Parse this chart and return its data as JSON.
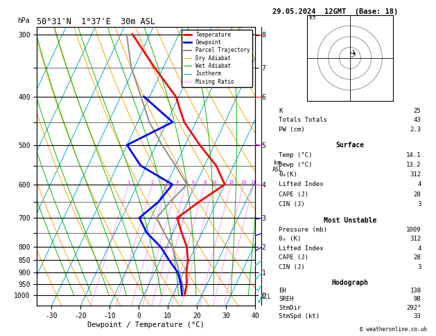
{
  "title_left": "50°31'N  1°37'E  30m ASL",
  "title_right": "29.05.2024  12GMT  (Base: 18)",
  "xlabel": "Dewpoint / Temperature (°C)",
  "ylabel_left": "hPa",
  "temp_color": "#FF0000",
  "dewpoint_color": "#0000FF",
  "parcel_color": "#909090",
  "dry_adiabat_color": "#FFA500",
  "wet_adiabat_color": "#00BB00",
  "isotherm_color": "#00AACC",
  "mixing_ratio_color": "#FF00FF",
  "bg_color": "#FFFFFF",
  "xlim": [
    -35,
    40
  ],
  "legend_entries": [
    {
      "label": "Temperature",
      "color": "#FF0000",
      "lw": 2.0,
      "ls": "solid"
    },
    {
      "label": "Dewpoint",
      "color": "#0000FF",
      "lw": 2.0,
      "ls": "solid"
    },
    {
      "label": "Parcel Trajectory",
      "color": "#909090",
      "lw": 1.5,
      "ls": "solid"
    },
    {
      "label": "Dry Adiabat",
      "color": "#FFA500",
      "lw": 0.8,
      "ls": "solid"
    },
    {
      "label": "Wet Adiabat",
      "color": "#00BB00",
      "lw": 0.8,
      "ls": "solid"
    },
    {
      "label": "Isotherm",
      "color": "#00AACC",
      "lw": 0.8,
      "ls": "solid"
    },
    {
      "label": "Mixing Ratio",
      "color": "#FF00FF",
      "lw": 0.8,
      "ls": "dotted"
    }
  ],
  "temp_profile_p": [
    1000,
    950,
    900,
    850,
    800,
    750,
    700,
    650,
    600,
    550,
    500,
    450,
    400,
    350,
    300
  ],
  "temp_profile_T": [
    14.1,
    13,
    11,
    9.5,
    7,
    3,
    -1,
    4,
    10,
    4,
    -5,
    -14,
    -21,
    -33,
    -46
  ],
  "dewp_profile_p": [
    1000,
    950,
    900,
    850,
    800,
    750,
    700,
    650,
    600,
    550,
    500,
    450,
    400
  ],
  "dewp_profile_T": [
    13.2,
    11,
    8,
    3,
    -2,
    -9,
    -14,
    -10,
    -8,
    -22,
    -30,
    -18,
    -32
  ],
  "parcel_profile_p": [
    1000,
    950,
    900,
    850,
    800,
    750,
    700,
    650,
    600,
    550,
    500,
    450,
    400,
    350,
    300
  ],
  "parcel_profile_T": [
    14.1,
    11.5,
    8.5,
    5.5,
    2,
    -3,
    -8,
    -6,
    -3,
    -10,
    -18,
    -26,
    -33,
    -41,
    -48
  ],
  "mixing_ratio_vals": [
    1,
    2,
    3,
    4,
    5,
    6,
    8,
    10,
    15,
    20,
    25
  ],
  "km_pressures": [
    1000,
    900,
    800,
    700,
    600,
    500,
    400,
    350,
    300
  ],
  "km_values": [
    0,
    1,
    2,
    3,
    4,
    5,
    6,
    7,
    8
  ],
  "lcl_label_p": 1007,
  "wind_p": [
    1000,
    950,
    900,
    850,
    800,
    750,
    700,
    600,
    500,
    400,
    300
  ],
  "wind_spd": [
    5,
    5,
    8,
    10,
    12,
    10,
    8,
    10,
    12,
    10,
    8
  ],
  "wind_dir": [
    200,
    210,
    220,
    230,
    240,
    250,
    260,
    270,
    280,
    270,
    260
  ],
  "wind_colors": [
    "#00CCCC",
    "#00CCCC",
    "#00CCCC",
    "#00CCCC",
    "#0000FF",
    "#0000FF",
    "#0000FF",
    "#FF00FF",
    "#FF00FF",
    "#FF0000",
    "#FF0000"
  ],
  "hodo_u": [
    0.5,
    1.5,
    3,
    4,
    5,
    5,
    4.5,
    4,
    4,
    5
  ],
  "hodo_v": [
    0.5,
    1,
    1.5,
    2,
    3,
    4,
    5,
    5.5,
    4,
    3
  ],
  "info_K": "25",
  "info_TT": "43",
  "info_PW": "2.3",
  "info_surf_temp": "14.1",
  "info_surf_dewp": "13.2",
  "info_surf_thetae": "312",
  "info_surf_li": "4",
  "info_surf_cape": "28",
  "info_surf_cin": "3",
  "info_mu_press": "1009",
  "info_mu_thetae": "312",
  "info_mu_li": "4",
  "info_mu_cape": "28",
  "info_mu_cin": "3",
  "info_eh": "138",
  "info_sreh": "98",
  "info_stmdir": "292°",
  "info_stmspd": "33"
}
